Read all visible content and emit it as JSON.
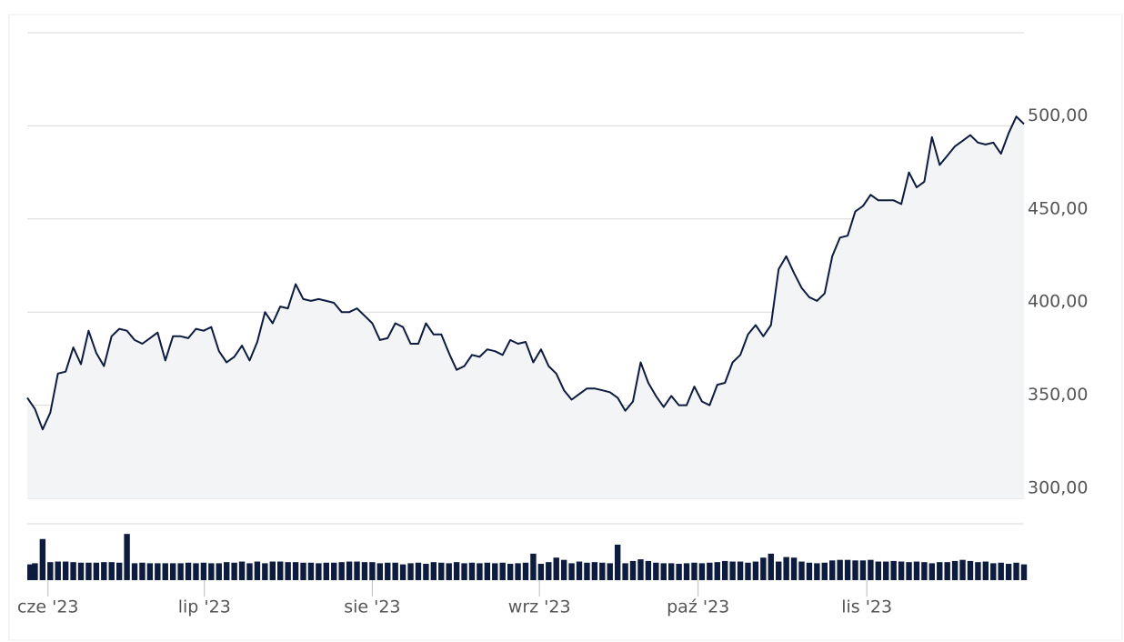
{
  "chart_data": {
    "type": "line",
    "color": "#0d1b3e",
    "fill": "#f3f4f6",
    "grid": true,
    "xlim": [
      0,
      130
    ],
    "xticks": [
      {
        "value": 2.7,
        "label": "cze '23"
      },
      {
        "value": 23.1,
        "label": "lip '23"
      },
      {
        "value": 45,
        "label": "sie '23"
      },
      {
        "value": 66.8,
        "label": "wrz '23"
      },
      {
        "value": 87.5,
        "label": "paź '23"
      },
      {
        "value": 109.5,
        "label": "lis '23"
      }
    ],
    "ylim": [
      300,
      550
    ],
    "yticks": [
      {
        "value": 300,
        "label": "300,00"
      },
      {
        "value": 350,
        "label": "350,00"
      },
      {
        "value": 400,
        "label": "400,00"
      },
      {
        "value": 450,
        "label": "450,00"
      },
      {
        "value": 500,
        "label": "500,00"
      }
    ],
    "values": [
      354,
      348,
      337,
      346,
      367,
      368,
      381,
      372,
      390,
      378,
      371,
      387,
      391,
      390,
      385,
      383,
      386,
      389,
      374,
      387,
      387,
      386,
      391,
      390,
      392,
      379,
      373,
      376,
      382,
      374,
      384,
      400,
      394,
      403,
      402,
      415,
      407,
      406,
      407,
      406,
      405,
      400,
      400,
      402,
      398,
      394,
      385,
      386,
      394,
      392,
      383,
      383,
      394,
      388,
      388,
      378,
      369,
      371,
      377,
      376,
      380,
      379,
      377,
      385,
      383,
      384,
      373,
      380,
      371,
      367,
      358,
      353,
      356,
      359,
      359,
      358,
      357,
      354,
      347,
      352,
      373,
      362,
      355,
      349,
      355,
      350,
      350,
      360,
      352,
      350,
      361,
      362,
      373,
      377,
      388,
      393,
      387,
      393,
      423,
      430,
      421,
      413,
      408,
      406,
      410,
      430,
      440,
      441,
      454,
      457,
      463,
      460,
      460,
      460,
      458,
      475,
      467,
      470,
      494,
      479,
      484,
      489,
      492,
      495,
      491,
      490,
      491,
      485,
      496,
      505,
      501
    ],
    "volume": {
      "ylim": [
        0,
        100
      ],
      "color": "#0d1b3e",
      "values": [
        28,
        30,
        73,
        32,
        33,
        33,
        32,
        31,
        31,
        31,
        32,
        32,
        31,
        82,
        30,
        31,
        30,
        30,
        30,
        30,
        30,
        31,
        30,
        31,
        30,
        30,
        32,
        31,
        33,
        30,
        33,
        30,
        33,
        33,
        32,
        32,
        31,
        31,
        30,
        31,
        31,
        32,
        33,
        33,
        32,
        32,
        30,
        31,
        31,
        28,
        30,
        31,
        29,
        32,
        31,
        30,
        32,
        30,
        31,
        30,
        31,
        30,
        31,
        29,
        30,
        31,
        47,
        29,
        32,
        40,
        36,
        30,
        33,
        31,
        32,
        31,
        30,
        63,
        30,
        34,
        37,
        34,
        31,
        30,
        30,
        29,
        30,
        31,
        30,
        31,
        32,
        34,
        33,
        33,
        31,
        33,
        40,
        47,
        33,
        41,
        40,
        33,
        31,
        30,
        31,
        35,
        36,
        36,
        35,
        35,
        36,
        33,
        33,
        34,
        33,
        32,
        33,
        32,
        30,
        32,
        32,
        34,
        36,
        34,
        32,
        33,
        30,
        31,
        29,
        31,
        28
      ]
    }
  }
}
